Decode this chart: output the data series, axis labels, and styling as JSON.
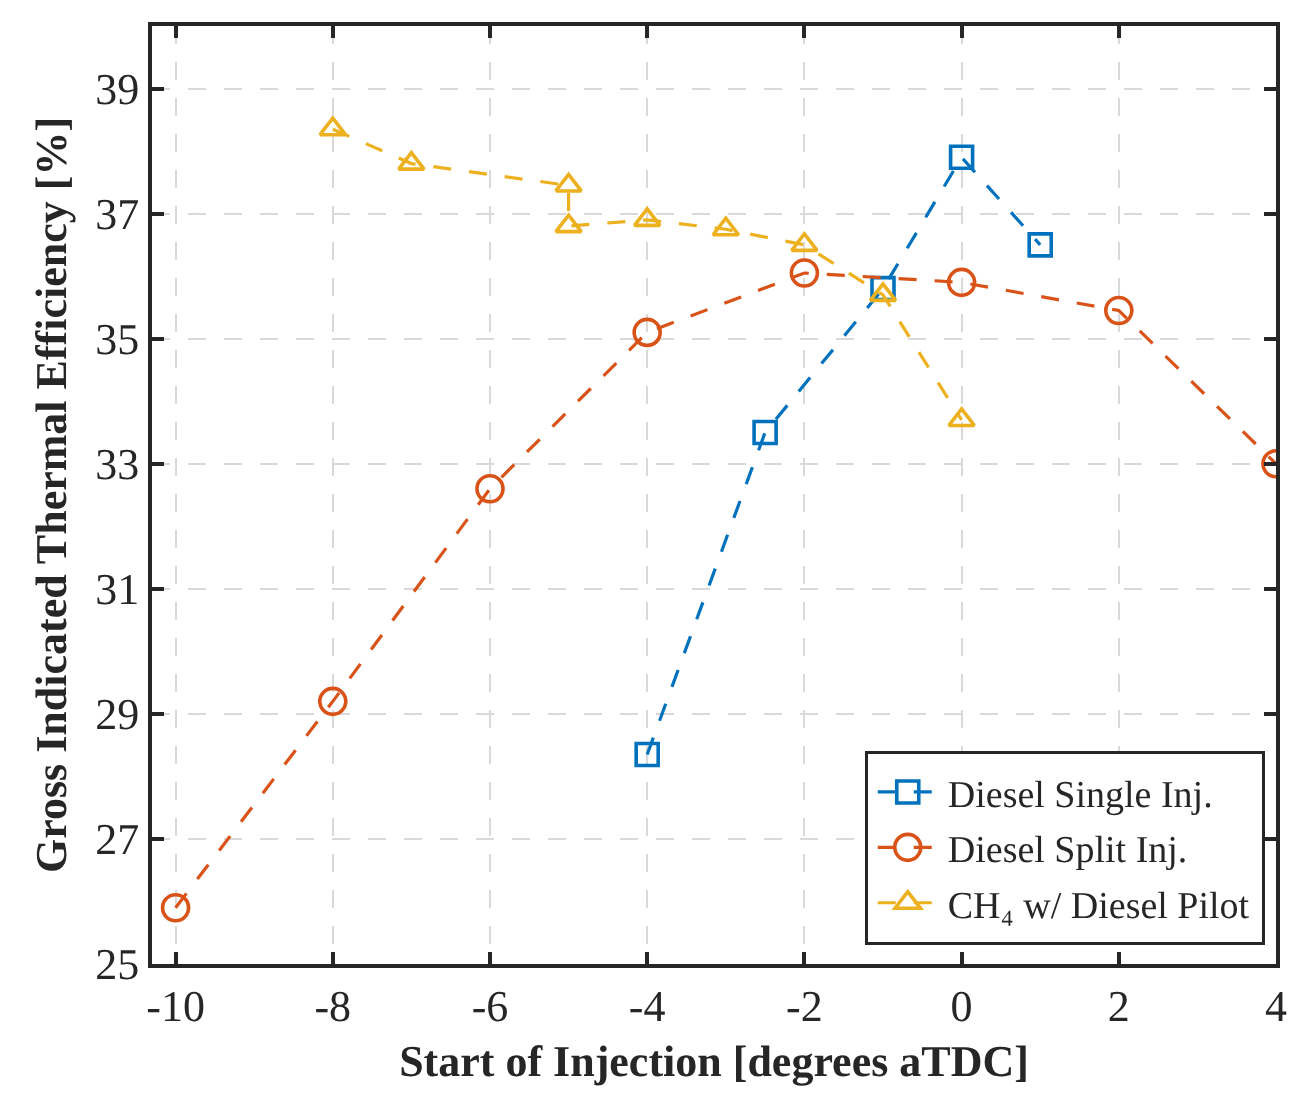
{
  "chart_data": {
    "type": "line",
    "xlabel": "Start of Injection [degrees aTDC]",
    "ylabel": "Gross Indicated Thermal Efficiency [%]",
    "xlim": [
      -10.3,
      4
    ],
    "xticks": [
      -10,
      -8,
      -6,
      -4,
      -2,
      0,
      2,
      4
    ],
    "ylim": [
      25,
      40
    ],
    "yticks": [
      25,
      27,
      29,
      31,
      33,
      35,
      37,
      39
    ],
    "grid": true,
    "legend": "bottom right",
    "line_style": "dashed",
    "series": [
      {
        "name": "Diesel Single Inj.",
        "color": "#0072bd",
        "marker": "square",
        "x": [
          -4,
          -2.5,
          -1,
          0,
          1
        ],
        "values": [
          28.35,
          33.5,
          35.8,
          37.9,
          36.5
        ]
      },
      {
        "name": "Diesel Split Inj.",
        "color": "#d95319",
        "marker": "circle",
        "x": [
          -10,
          -8,
          -6,
          -4,
          -2,
          0,
          2,
          4
        ],
        "values": [
          25.9,
          29.2,
          32.6,
          35.1,
          36.05,
          35.9,
          35.45,
          33.0
        ]
      },
      {
        "name": "CH₄ w/ Diesel Pilot",
        "color": "#edb120",
        "marker": "triangle",
        "x": [
          -8,
          -7,
          -5,
          -5,
          -4,
          -3,
          -2,
          -1,
          0
        ],
        "values": [
          38.35,
          37.8,
          37.45,
          36.8,
          36.9,
          36.75,
          36.5,
          35.7,
          33.7
        ]
      }
    ]
  }
}
